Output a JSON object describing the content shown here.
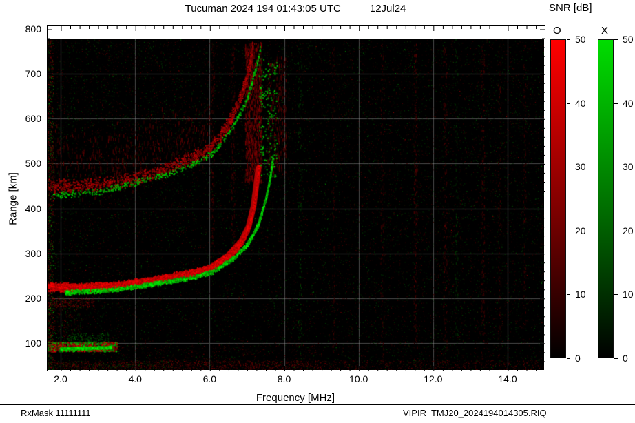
{
  "title": {
    "main": "Tucuman 2024 194 01:43:05 UTC",
    "date": "12Jul24"
  },
  "axes": {
    "x_label": "Frequency [MHz]",
    "x_ticks": [
      "2.0",
      "4.0",
      "6.0",
      "8.0",
      "10.0",
      "12.0",
      "14.0"
    ],
    "y_label": "Range [km]",
    "y_ticks": [
      "800",
      "700",
      "600",
      "500",
      "400",
      "300",
      "200",
      "100"
    ]
  },
  "colorbar": {
    "title": "SNR [dB]",
    "o_label": "O",
    "x_label": "X",
    "ticks": [
      50,
      40,
      30,
      20,
      10,
      0
    ],
    "o_color_top": "#ff0000",
    "x_color_top": "#00dd00",
    "bottom_color": "#000000"
  },
  "footer": {
    "left": "RxMask 11111111",
    "right": "VIPIR  TMJ20_2024194014305.RIQ"
  },
  "chart_data": {
    "type": "heatmap",
    "title": "Tucuman 2024 194 01:43:05 UTC 12Jul24",
    "xlabel": "Frequency [MHz]",
    "ylabel": "Range [km]",
    "x_range_mhz": [
      1.63,
      14.98
    ],
    "y_range_km": [
      40,
      777
    ],
    "x_ticks_mhz": [
      2,
      4,
      6,
      8,
      10,
      12,
      14
    ],
    "y_ticks_km": [
      800,
      700,
      600,
      500,
      400,
      300,
      200,
      100
    ],
    "grid_color": "rgba(150,150,150,0.5)",
    "snr_scale_db": {
      "min": 0,
      "max": 50
    },
    "modes": {
      "O": "#ff0000",
      "X": "#00dd00"
    },
    "background_noise": {
      "red_dots": 9000,
      "green_dots": 7500,
      "i": [
        18,
        85
      ]
    },
    "noise_regions": [
      {
        "name": "left-edge-column",
        "f": [
          1.63,
          1.8
        ],
        "r": [
          40,
          775
        ],
        "color": "m",
        "dots": 950,
        "i": [
          50,
          200
        ],
        "size": 1
      },
      {
        "name": "E-region-band",
        "f": [
          1.63,
          3.5
        ],
        "r": [
          82,
          103
        ],
        "color": "m",
        "dots": 1000,
        "i": [
          80,
          220
        ],
        "size": 2
      },
      {
        "name": "E-region-upper-green",
        "f": [
          2.2,
          3.3
        ],
        "r": [
          100,
          122
        ],
        "color": "g",
        "dots": 180,
        "i": [
          60,
          160
        ],
        "size": 1
      },
      {
        "name": "low-left-speckle",
        "f": [
          1.63,
          2.6
        ],
        "r": [
          105,
          205
        ],
        "color": "m",
        "dots": 260,
        "i": [
          40,
          140
        ],
        "size": 1
      },
      {
        "name": "range-190-red",
        "f": [
          1.63,
          2.9
        ],
        "r": [
          180,
          202
        ],
        "color": "r",
        "dots": 200,
        "i": [
          70,
          170
        ],
        "size": 1
      },
      {
        "name": "bottom-band-red",
        "f": [
          1.63,
          14.98
        ],
        "r": [
          40,
          62
        ],
        "color": "r",
        "dots": 900,
        "i": [
          40,
          130
        ],
        "size": 1
      },
      {
        "name": "bottom-band-left-extra",
        "f": [
          1.63,
          9.0
        ],
        "r": [
          42,
          60
        ],
        "color": "r",
        "dots": 600,
        "i": [
          60,
          150
        ],
        "size": 1
      },
      {
        "name": "bottom-band-green",
        "f": [
          1.63,
          5.0
        ],
        "r": [
          40,
          60
        ],
        "color": "g",
        "dots": 140,
        "i": [
          40,
          110
        ],
        "size": 1
      },
      {
        "name": "low-mid-sparse",
        "f": [
          3.5,
          9.0
        ],
        "r": [
          60,
          95
        ],
        "color": "r",
        "dots": 220,
        "i": [
          30,
          100
        ],
        "size": 1
      },
      {
        "name": "foF2-spread-red",
        "f": [
          6.95,
          7.4
        ],
        "r": [
          460,
          772
        ],
        "color": "r",
        "dots": 900,
        "i": [
          45,
          150
        ],
        "size": 1,
        "streak": true
      },
      {
        "name": "fxF2-spread-red",
        "f": [
          7.55,
          8.05
        ],
        "r": [
          480,
          745
        ],
        "color": "r",
        "dots": 280,
        "i": [
          35,
          105
        ],
        "size": 1,
        "streak": true
      },
      {
        "name": "foF2-green-scatter",
        "f": [
          7.3,
          7.8
        ],
        "r": [
          470,
          735
        ],
        "color": "g",
        "dots": 170,
        "i": [
          80,
          220
        ],
        "size": 2
      },
      {
        "name": "upper-left-sparse",
        "f": [
          1.9,
          5.5
        ],
        "r": [
          560,
          775
        ],
        "color": "m",
        "dots": 300,
        "i": [
          30,
          110
        ],
        "size": 1
      },
      {
        "name": "bright-sparkles",
        "f": [
          1.63,
          14.98
        ],
        "r": [
          40,
          777
        ],
        "color": "m",
        "dots": 260,
        "i": [
          90,
          190
        ],
        "size": 1
      }
    ],
    "rfi_stripes": [
      {
        "f": 6.07,
        "w": 0.05,
        "color": "r",
        "dots": 170,
        "i": [
          25,
          85
        ],
        "r": [
          290,
          770
        ]
      },
      {
        "f": 6.62,
        "w": 0.05,
        "color": "r",
        "dots": 130,
        "i": [
          25,
          80
        ],
        "r": [
          320,
          770
        ]
      },
      {
        "f": 9.32,
        "w": 0.04,
        "color": "r",
        "dots": 120,
        "i": [
          22,
          70
        ]
      },
      {
        "f": 10.63,
        "w": 0.05,
        "color": "r",
        "dots": 150,
        "i": [
          25,
          80
        ]
      },
      {
        "f": 11.52,
        "w": 0.05,
        "color": "r",
        "dots": 200,
        "i": [
          30,
          95
        ]
      },
      {
        "f": 12.32,
        "w": 0.05,
        "color": "r",
        "dots": 180,
        "i": [
          30,
          90
        ]
      },
      {
        "f": 13.33,
        "w": 0.05,
        "color": "r",
        "dots": 170,
        "i": [
          30,
          90
        ]
      },
      {
        "f": 13.78,
        "w": 0.04,
        "color": "r",
        "dots": 120,
        "i": [
          25,
          75
        ]
      },
      {
        "f": 14.45,
        "w": 0.04,
        "color": "r",
        "dots": 110,
        "i": [
          25,
          75
        ]
      },
      {
        "f": 8.42,
        "w": 0.05,
        "color": "g",
        "dots": 110,
        "i": [
          25,
          80
        ]
      },
      {
        "f": 12.62,
        "w": 0.04,
        "color": "g",
        "dots": 90,
        "i": [
          22,
          70
        ]
      }
    ],
    "traces": [
      {
        "name": "multipath-spread-cloud",
        "mode": "O",
        "color": "r",
        "width_km": 130,
        "density": 2.2,
        "i": [
          30,
          100
        ],
        "size": 1,
        "streak": true,
        "points": [
          [
            1.63,
            505
          ],
          [
            2.5,
            503
          ],
          [
            3.5,
            512
          ],
          [
            4.2,
            527
          ],
          [
            5.0,
            552
          ],
          [
            5.6,
            570
          ],
          [
            6.0,
            588
          ]
        ]
      },
      {
        "name": "second-hop-O",
        "mode": "O",
        "color": "r",
        "width_km": 26,
        "density": 3.2,
        "i": [
          80,
          200
        ],
        "size": 2,
        "points": [
          [
            1.63,
            452
          ],
          [
            2.5,
            450
          ],
          [
            3.5,
            458
          ],
          [
            4.2,
            472
          ],
          [
            5.0,
            497
          ],
          [
            5.6,
            516
          ],
          [
            6.0,
            533
          ],
          [
            6.5,
            590
          ],
          [
            6.85,
            655
          ],
          [
            7.05,
            710
          ],
          [
            7.15,
            762
          ]
        ]
      },
      {
        "name": "second-hop-X",
        "mode": "X",
        "color": "g",
        "width_km": 12,
        "density": 1.1,
        "i": [
          100,
          230
        ],
        "size": 2,
        "points": [
          [
            1.75,
            430
          ],
          [
            3.0,
            438
          ],
          [
            4.0,
            458
          ],
          [
            5.0,
            482
          ],
          [
            5.6,
            502
          ],
          [
            6.1,
            526
          ],
          [
            6.6,
            580
          ],
          [
            7.0,
            645
          ],
          [
            7.25,
            720
          ],
          [
            7.35,
            758
          ]
        ]
      },
      {
        "name": "sporadic-E-green",
        "mode": "X",
        "color": "g",
        "width_km": 5,
        "density": 7,
        "i": [
          150,
          255
        ],
        "size": 2,
        "core": true,
        "points": [
          [
            2.0,
            88
          ],
          [
            3.35,
            91
          ]
        ]
      },
      {
        "name": "F-layer-O",
        "mode": "O",
        "color": "r",
        "width_km": 16,
        "density": 14,
        "i": [
          150,
          255
        ],
        "size": 2,
        "core": true,
        "points": [
          [
            1.63,
            226
          ],
          [
            2.5,
            224
          ],
          [
            3.5,
            228
          ],
          [
            4.2,
            236
          ],
          [
            5.0,
            248
          ],
          [
            5.6,
            257
          ],
          [
            6.0,
            266
          ],
          [
            6.5,
            295
          ],
          [
            6.85,
            327
          ],
          [
            7.05,
            360
          ],
          [
            7.18,
            405
          ],
          [
            7.25,
            450
          ],
          [
            7.31,
            490
          ]
        ]
      },
      {
        "name": "F-layer-X",
        "mode": "X",
        "color": "g",
        "width_km": 9,
        "density": 4,
        "i": [
          120,
          255
        ],
        "size": 2,
        "points": [
          [
            2.1,
            214
          ],
          [
            3.0,
            217
          ],
          [
            4.0,
            226
          ],
          [
            5.0,
            239
          ],
          [
            5.6,
            249
          ],
          [
            6.1,
            261
          ],
          [
            6.6,
            288
          ],
          [
            7.0,
            320
          ],
          [
            7.3,
            366
          ],
          [
            7.5,
            422
          ],
          [
            7.62,
            472
          ],
          [
            7.68,
            510
          ]
        ]
      }
    ]
  }
}
